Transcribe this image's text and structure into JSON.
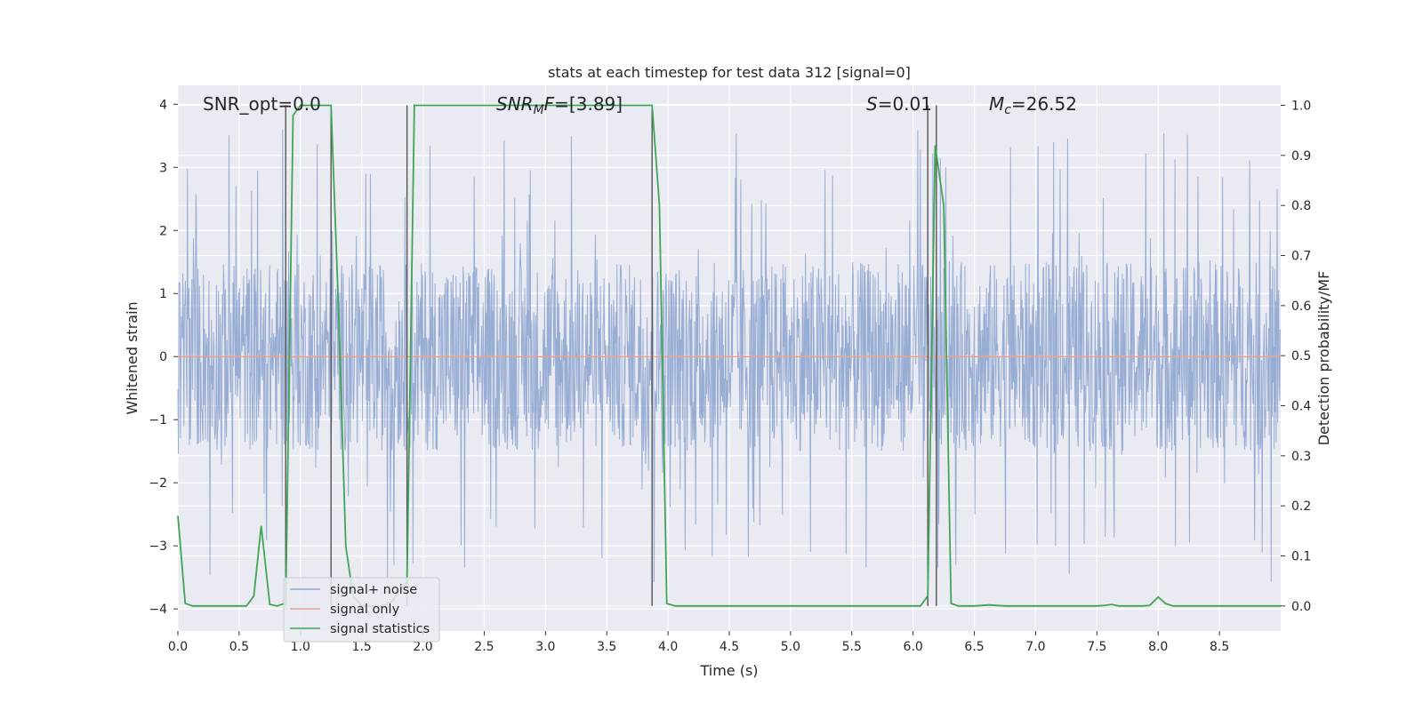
{
  "chart_data": {
    "type": "line",
    "title": "stats at each timestep for test data 312 [signal=0]",
    "xlabel": "Time (s)",
    "ylabel_left": "Whitened strain",
    "ylabel_right": "Detection probability/MF",
    "xlim": [
      0.0,
      9.0
    ],
    "ylim_left": [
      -4.35,
      4.3
    ],
    "ylim_right": [
      -0.05,
      1.04
    ],
    "x_ticks": [
      "0.0",
      "0.5",
      "1.0",
      "1.5",
      "2.0",
      "2.5",
      "3.0",
      "3.5",
      "4.0",
      "4.5",
      "5.0",
      "5.5",
      "6.0",
      "6.5",
      "7.0",
      "7.5",
      "8.0",
      "8.5"
    ],
    "y_left_ticks": [
      "−4",
      "−3",
      "−2",
      "−1",
      "0",
      "1",
      "2",
      "3",
      "4"
    ],
    "y_right_ticks": [
      "0.0",
      "0.1",
      "0.2",
      "0.3",
      "0.4",
      "0.5",
      "0.6",
      "0.7",
      "0.8",
      "0.9",
      "1.0"
    ],
    "grid": true,
    "legend_position": "lower-left",
    "annotations": {
      "snr_opt": "SNR_opt=0.0",
      "snr_mf_italic": "SNR",
      "snr_mf_sub": "M",
      "snr_mf_italic2": "F",
      "snr_mf_rest": "=[3.89]",
      "s_italic": "S",
      "s_rest": "=0.01",
      "mc_italic": "M",
      "mc_sub": "c",
      "mc_rest": "=26.52"
    },
    "series": [
      {
        "name": "signal+ noise",
        "color": "#8fa6d0",
        "amplitude_typical": 1.5,
        "amplitude_peak": 3.6
      },
      {
        "name": "signal only",
        "color": "#e8a48c",
        "values_constant": 0.0
      },
      {
        "name": "signal statistics",
        "color": "#3fa554",
        "axis": "right",
        "x": [
          0.0,
          0.06,
          0.12,
          0.25,
          0.5,
          0.56,
          0.62,
          0.68,
          0.75,
          0.81,
          0.87,
          0.88,
          0.94,
          1.0,
          1.06,
          1.12,
          1.18,
          1.25,
          1.31,
          1.37,
          1.43,
          1.5,
          1.56,
          1.62,
          1.68,
          1.75,
          1.81,
          1.87,
          1.93,
          2.0,
          3.81,
          3.87,
          3.93,
          3.99,
          4.06,
          4.12,
          6.06,
          6.12,
          6.18,
          6.25,
          6.31,
          6.37,
          6.5,
          6.62,
          6.75,
          7.5,
          7.56,
          7.62,
          7.68,
          7.75,
          7.87,
          7.93,
          8.0,
          8.06,
          8.12,
          8.25,
          9.0
        ],
        "values": [
          0.18,
          0.005,
          0.0,
          0.0,
          0.0,
          0.0,
          0.02,
          0.16,
          0.003,
          0.0,
          0.005,
          0.0,
          0.98,
          1.0,
          1.0,
          1.0,
          1.0,
          1.0,
          0.6,
          0.12,
          0.02,
          0.0,
          0.0,
          0.0,
          0.0,
          0.01,
          0.03,
          0.05,
          1.0,
          1.0,
          1.0,
          1.0,
          0.8,
          0.005,
          0.0,
          0.0,
          0.0,
          0.02,
          0.92,
          0.8,
          0.005,
          0.0,
          0.0,
          0.002,
          0.0,
          0.0,
          0.001,
          0.003,
          0.0,
          0.0,
          0.0,
          0.001,
          0.018,
          0.005,
          0.0,
          0.0,
          0.0
        ]
      }
    ],
    "vertical_lines_x": [
      0.88,
      1.25,
      1.87,
      3.87,
      6.12,
      6.19
    ]
  }
}
